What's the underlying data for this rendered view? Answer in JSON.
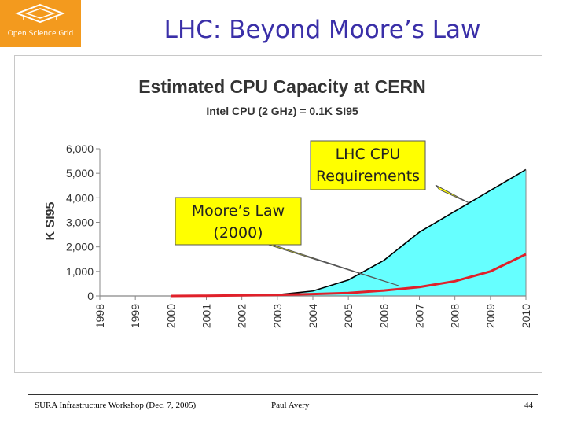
{
  "header": {
    "logo_text": "Open Science Grid",
    "slide_title": "LHC: Beyond Moore’s Law"
  },
  "chart_data": {
    "type": "area",
    "title": "Estimated CPU Capacity at CERN",
    "subtitle": "Intel CPU (2 GHz) = 0.1K SI95",
    "xlabel": "",
    "ylabel": "K SI95",
    "categories": [
      "1998",
      "1999",
      "2000",
      "2001",
      "2002",
      "2003",
      "2004",
      "2005",
      "2006",
      "2007",
      "2008",
      "2009",
      "2010"
    ],
    "ylim": [
      0,
      6000
    ],
    "yticks": [
      "0",
      "1,000",
      "2,000",
      "3,000",
      "4,000",
      "5,000",
      "6,000"
    ],
    "ytick_values": [
      0,
      1000,
      2000,
      3000,
      4000,
      5000,
      6000
    ],
    "grid": false,
    "series": [
      {
        "name": "LHC CPU Requirements",
        "kind": "area",
        "x_start": "2000",
        "values": [
          null,
          null,
          0,
          0,
          20,
          50,
          200,
          650,
          1450,
          2600,
          3450,
          4300,
          5150
        ]
      },
      {
        "name": "Moore’s Law (2000)",
        "kind": "line",
        "x_start": "2000",
        "values": [
          null,
          null,
          0,
          10,
          25,
          45,
          75,
          120,
          220,
          360,
          600,
          1000,
          1700
        ]
      }
    ],
    "annotations": [
      {
        "text_lines": [
          "LHC CPU",
          "Requirements"
        ],
        "points_to": "LHC CPU Requirements"
      },
      {
        "text_lines": [
          "Moore’s Law",
          "(2000)"
        ],
        "points_to": "Moore’s Law (2000)"
      }
    ],
    "colors": {
      "area_fill": "#66ffff",
      "area_edge": "#000000",
      "moore_line": "#e0202a",
      "callout_fill": "#ffff00"
    }
  },
  "footer": {
    "left": "SURA Infrastructure Workshop (Dec. 7, 2005)",
    "middle": "Paul Avery",
    "page_number": "44"
  }
}
